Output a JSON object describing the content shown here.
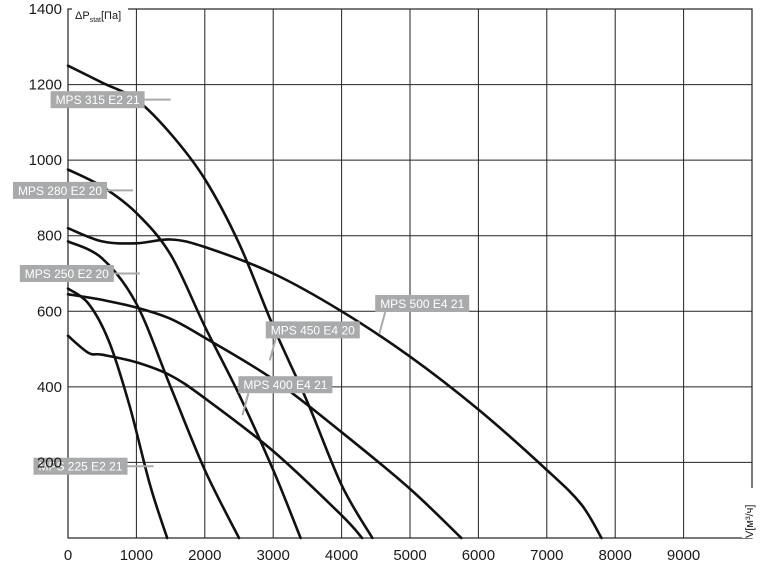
{
  "chart_data": {
    "type": "line",
    "title": "",
    "xlabel": "V[м³/ч]",
    "ylabel": "ΔPstat[Па]",
    "ylabel_parts": {
      "main": "ΔP",
      "sub": "stat",
      "unit": "[Па]"
    },
    "xlabel_parts": {
      "main": "V",
      "unit": "[м³/ч]"
    },
    "xlim": [
      0,
      10000
    ],
    "ylim": [
      0,
      1400
    ],
    "x_ticks": [
      0,
      1000,
      2000,
      3000,
      4000,
      5000,
      6000,
      7000,
      8000,
      9000
    ],
    "x_tick_labels": [
      "0",
      "1000",
      "2000",
      "3000",
      "4000",
      "5000",
      "6000",
      "7000",
      "8000",
      "9000"
    ],
    "y_ticks": [
      200,
      400,
      600,
      800,
      1000,
      1200,
      1400
    ],
    "y_tick_labels": [
      "200",
      "400",
      "600",
      "800",
      "1000",
      "1200",
      "1400"
    ],
    "grid": true,
    "line_color": "#111111",
    "label_color": "#a9aaab",
    "series": [
      {
        "name": "MPS 315 E2 21",
        "x": [
          0,
          500,
          1000,
          1500,
          2000,
          2500,
          3000,
          3500,
          4000,
          4450
        ],
        "y": [
          1250,
          1205,
          1160,
          1070,
          950,
          780,
          560,
          360,
          140,
          0
        ]
      },
      {
        "name": "MPS 280 E2 20",
        "x": [
          0,
          500,
          1000,
          1500,
          2000,
          2500,
          3000,
          3400
        ],
        "y": [
          975,
          930,
          860,
          750,
          560,
          380,
          180,
          0
        ]
      },
      {
        "name": "MPS 250 E2 20",
        "x": [
          0,
          500,
          1000,
          1500,
          2000,
          2500
        ],
        "y": [
          785,
          740,
          620,
          400,
          180,
          0
        ]
      },
      {
        "name": "MPS 225 E2 21",
        "x": [
          0,
          300,
          600,
          900,
          1200,
          1450
        ],
        "y": [
          660,
          620,
          520,
          350,
          140,
          0
        ]
      },
      {
        "name": "MPS 500 E4 21",
        "x": [
          0,
          500,
          1000,
          1500,
          2000,
          3000,
          4000,
          5000,
          6000,
          7000,
          7500,
          7800
        ],
        "y": [
          820,
          785,
          780,
          790,
          770,
          700,
          600,
          480,
          340,
          180,
          90,
          0
        ]
      },
      {
        "name": "MPS 450 E4 20",
        "x": [
          0,
          500,
          1000,
          1500,
          2000,
          3000,
          4000,
          5000,
          5750
        ],
        "y": [
          645,
          630,
          610,
          580,
          530,
          420,
          280,
          130,
          0
        ]
      },
      {
        "name": "MPS 400 E4 21",
        "x": [
          0,
          300,
          500,
          1000,
          1500,
          2000,
          3000,
          4000,
          4300
        ],
        "y": [
          535,
          490,
          485,
          465,
          430,
          370,
          230,
          60,
          0
        ]
      }
    ],
    "annotations": [
      {
        "text": "MPS 315 E2 21",
        "series": "MPS 315 E2 21",
        "at": [
          1500,
          1160
        ]
      },
      {
        "text": "MPS 280 E2 20",
        "series": "MPS 280 E2 20",
        "at": [
          950,
          920
        ]
      },
      {
        "text": "MPS 250 E2 20",
        "series": "MPS 250 E2 20",
        "at": [
          1050,
          700
        ]
      },
      {
        "text": "MPS 225 E2 21",
        "series": "MPS 225 E2 21",
        "at": [
          1250,
          190
        ]
      },
      {
        "text": "MPS 500 E4 21",
        "series": "MPS 500 E4 21",
        "at": [
          4550,
          540
        ]
      },
      {
        "text": "MPS 450 E4 20",
        "series": "MPS 450 E4 20",
        "at": [
          2950,
          470
        ]
      },
      {
        "text": "MPS 400 E4 21",
        "series": "MPS 400 E4 21",
        "at": [
          2550,
          325
        ]
      }
    ]
  }
}
